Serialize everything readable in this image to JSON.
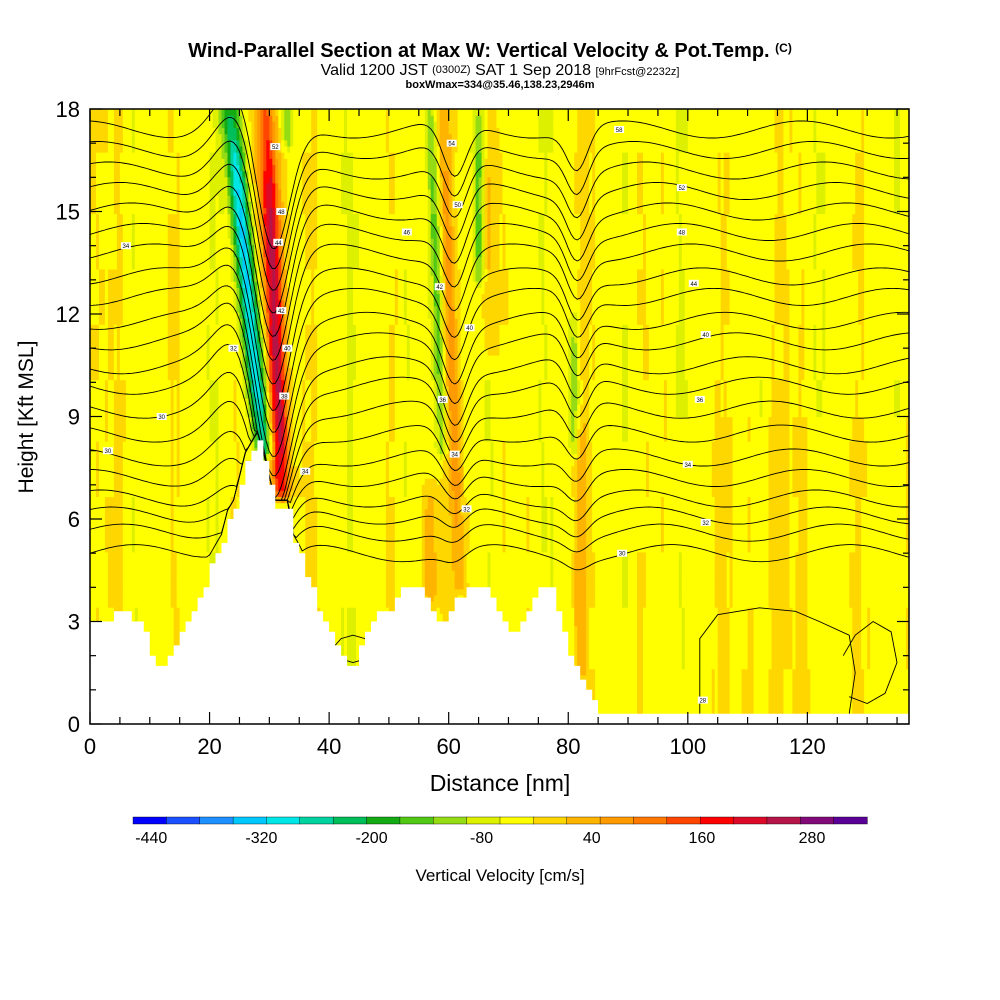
{
  "chart_data": {
    "type": "heatmap",
    "title": "Wind-Parallel Section at Max W: Vertical Velocity & Pot.Temp.",
    "title_suffix": "(C)",
    "subtitle_parts": [
      "Valid 1200 JST",
      "(0300Z)",
      "SAT 1 Sep 2018",
      "[9hrFcst@2232z]"
    ],
    "subtitle2": "boxWmax=334@35.46,138.23,2946m",
    "xlabel": "Distance [nm]",
    "ylabel": "Height [Kft MSL]",
    "xlim": [
      0,
      137
    ],
    "ylim": [
      0,
      18
    ],
    "xticks": [
      "0",
      "20",
      "40",
      "60",
      "80",
      "100",
      "120"
    ],
    "yticks": [
      "0",
      "3",
      "6",
      "9",
      "12",
      "15",
      "18"
    ],
    "colorbar": {
      "label": "Vertical Velocity [cm/s]",
      "min": -460,
      "max": 340,
      "step": 40,
      "tick_labels": [
        "-440",
        "-320",
        "-200",
        "-80",
        "40",
        "160",
        "280"
      ],
      "colors": [
        "#0000ff",
        "#1a50ff",
        "#1e90ff",
        "#00c8ff",
        "#00e6e6",
        "#00d2a0",
        "#00be5a",
        "#14aa14",
        "#50c814",
        "#96dc14",
        "#dcf000",
        "#ffff00",
        "#ffd700",
        "#ffb400",
        "#ff9b00",
        "#ff7800",
        "#ff4600",
        "#ff0000",
        "#dc0a28",
        "#b41446",
        "#820a78",
        "#5a0096"
      ]
    },
    "terrain_kft": [
      [
        0,
        3.0
      ],
      [
        3,
        3.0
      ],
      [
        4,
        3.3
      ],
      [
        6,
        3.3
      ],
      [
        7,
        3.0
      ],
      [
        8,
        3.0
      ],
      [
        9,
        2.7
      ],
      [
        10,
        2.0
      ],
      [
        11,
        1.7
      ],
      [
        12,
        1.7
      ],
      [
        13,
        2.0
      ],
      [
        14,
        2.3
      ],
      [
        15,
        2.7
      ],
      [
        16,
        3.0
      ],
      [
        17,
        3.3
      ],
      [
        18,
        3.7
      ],
      [
        19,
        4.0
      ],
      [
        20,
        4.7
      ],
      [
        21,
        5.0
      ],
      [
        22,
        5.3
      ],
      [
        23,
        6.0
      ],
      [
        24,
        6.3
      ],
      [
        25,
        7.0
      ],
      [
        26,
        7.7
      ],
      [
        27,
        8.0
      ],
      [
        28,
        8.3
      ],
      [
        29,
        7.7
      ],
      [
        30,
        7.0
      ],
      [
        31,
        6.3
      ],
      [
        33,
        6.3
      ],
      [
        34,
        5.3
      ],
      [
        35,
        5.0
      ],
      [
        36,
        4.3
      ],
      [
        37,
        4.0
      ],
      [
        38,
        3.3
      ],
      [
        39,
        3.0
      ],
      [
        40,
        2.7
      ],
      [
        41,
        2.3
      ],
      [
        42,
        2.0
      ],
      [
        43,
        1.7
      ],
      [
        44,
        1.7
      ],
      [
        45,
        2.3
      ],
      [
        46,
        2.7
      ],
      [
        47,
        3.0
      ],
      [
        48,
        3.3
      ],
      [
        50,
        3.3
      ],
      [
        51,
        3.7
      ],
      [
        52,
        4.0
      ],
      [
        55,
        4.0
      ],
      [
        56,
        3.7
      ],
      [
        57,
        3.3
      ],
      [
        58,
        3.0
      ],
      [
        59,
        3.0
      ],
      [
        60,
        3.3
      ],
      [
        61,
        3.7
      ],
      [
        62,
        3.7
      ],
      [
        63,
        4.0
      ],
      [
        66,
        4.0
      ],
      [
        67,
        3.7
      ],
      [
        68,
        3.3
      ],
      [
        69,
        3.0
      ],
      [
        70,
        2.7
      ],
      [
        71,
        2.7
      ],
      [
        72,
        3.0
      ],
      [
        73,
        3.3
      ],
      [
        74,
        3.7
      ],
      [
        75,
        4.0
      ],
      [
        77,
        4.0
      ],
      [
        78,
        3.3
      ],
      [
        79,
        2.7
      ],
      [
        80,
        2.0
      ],
      [
        81,
        1.7
      ],
      [
        82,
        1.3
      ],
      [
        83,
        1.0
      ],
      [
        84,
        0.7
      ],
      [
        85,
        0.3
      ],
      [
        137,
        0.3
      ]
    ],
    "updrafts": [
      {
        "x": 32,
        "y_bottom": 6.8,
        "y_top": 18,
        "lean": 2.5,
        "w_peak": 320,
        "width_nm": 1.6
      },
      {
        "x": 62,
        "y_bottom": 4.0,
        "y_top": 18,
        "lean": 3.0,
        "w_peak": 100,
        "width_nm": 1.2
      },
      {
        "x": 67,
        "y_bottom": 11.0,
        "y_top": 18,
        "lean": 0.0,
        "w_peak": 80,
        "width_nm": 1.2
      },
      {
        "x": 57,
        "y_bottom": 3.5,
        "y_top": 7.0,
        "lean": 0.0,
        "w_peak": 80,
        "width_nm": 1.2
      },
      {
        "x": 82,
        "y_bottom": 1.5,
        "y_top": 9.0,
        "lean": 0.0,
        "w_peak": 70,
        "width_nm": 1.0
      }
    ],
    "downdrafts": [
      {
        "x": 29,
        "y_bottom": 8.0,
        "y_top": 18,
        "lean": 5.5,
        "w_min": -320,
        "width_nm": 1.6
      },
      {
        "x": 59,
        "y_bottom": 8.0,
        "y_top": 18,
        "lean": 2.0,
        "w_min": -120,
        "width_nm": 1.0
      },
      {
        "x": 65,
        "y_bottom": 13.0,
        "y_top": 18,
        "lean": 0.0,
        "w_min": -110,
        "width_nm": 0.9
      },
      {
        "x": 81,
        "y_bottom": 8.0,
        "y_top": 12.0,
        "lean": 0.0,
        "w_min": -90,
        "width_nm": 0.8
      },
      {
        "x": 33,
        "y_bottom": 17.0,
        "y_top": 18,
        "lean": 0.0,
        "w_min": -100,
        "width_nm": 0.8
      }
    ],
    "isentropes": {
      "base_height_kft": [
        5.0,
        5.6,
        6.1,
        6.6,
        7.2,
        7.8,
        8.5,
        9.2,
        9.9,
        10.5,
        11.2,
        11.8,
        12.5,
        13.1,
        13.8,
        14.4,
        15.0,
        15.6,
        16.2,
        16.8,
        17.4
      ],
      "perturbations": [
        {
          "x": 30.5,
          "amplitude_kft": -4.0,
          "halfwidth_nm": 4.0
        },
        {
          "x": 24.5,
          "amplitude_kft": 1.2,
          "halfwidth_nm": 5.0
        },
        {
          "x": 61,
          "amplitude_kft": -1.6,
          "halfwidth_nm": 2.8
        },
        {
          "x": 81.5,
          "amplitude_kft": -1.2,
          "halfwidth_nm": 2.5
        }
      ],
      "contour_labels": [
        {
          "x": 6,
          "y": 14.0,
          "text": "34"
        },
        {
          "x": 12,
          "y": 9.0,
          "text": "30"
        },
        {
          "x": 3,
          "y": 8.0,
          "text": "30"
        },
        {
          "x": 24,
          "y": 11.0,
          "text": "32"
        },
        {
          "x": 31,
          "y": 16.9,
          "text": "52"
        },
        {
          "x": 32,
          "y": 15.0,
          "text": "48"
        },
        {
          "x": 31.5,
          "y": 14.1,
          "text": "44"
        },
        {
          "x": 32,
          "y": 12.1,
          "text": "42"
        },
        {
          "x": 33,
          "y": 11.0,
          "text": "40"
        },
        {
          "x": 32.5,
          "y": 9.6,
          "text": "38"
        },
        {
          "x": 36,
          "y": 7.4,
          "text": "34"
        },
        {
          "x": 60.5,
          "y": 17.0,
          "text": "54"
        },
        {
          "x": 61.5,
          "y": 15.2,
          "text": "50"
        },
        {
          "x": 53,
          "y": 14.4,
          "text": "46"
        },
        {
          "x": 58.5,
          "y": 12.8,
          "text": "42"
        },
        {
          "x": 63.5,
          "y": 11.6,
          "text": "40"
        },
        {
          "x": 59,
          "y": 9.5,
          "text": "36"
        },
        {
          "x": 61,
          "y": 7.9,
          "text": "34"
        },
        {
          "x": 63,
          "y": 6.3,
          "text": "32"
        },
        {
          "x": 88.5,
          "y": 17.4,
          "text": "58"
        },
        {
          "x": 99,
          "y": 15.7,
          "text": "52"
        },
        {
          "x": 99,
          "y": 14.4,
          "text": "48"
        },
        {
          "x": 101,
          "y": 12.9,
          "text": "44"
        },
        {
          "x": 103,
          "y": 11.4,
          "text": "40"
        },
        {
          "x": 102,
          "y": 9.5,
          "text": "36"
        },
        {
          "x": 100,
          "y": 7.6,
          "text": "34"
        },
        {
          "x": 103,
          "y": 5.9,
          "text": "32"
        },
        {
          "x": 89,
          "y": 5.0,
          "text": "30"
        },
        {
          "x": 102.5,
          "y": 0.7,
          "text": "28"
        }
      ]
    },
    "low_level_closed_contours": [
      {
        "points": [
          [
            41,
            2.3
          ],
          [
            42,
            2.5
          ],
          [
            44,
            2.6
          ],
          [
            46,
            2.5
          ],
          [
            47,
            2.2
          ],
          [
            46,
            1.9
          ],
          [
            44,
            1.8
          ],
          [
            42,
            1.9
          ]
        ]
      },
      {
        "points": [
          [
            102,
            0.3
          ],
          [
            102,
            2.5
          ],
          [
            105,
            3.2
          ],
          [
            112,
            3.4
          ],
          [
            118,
            3.3
          ],
          [
            122,
            3.0
          ],
          [
            127,
            2.6
          ],
          [
            128,
            1.5
          ],
          [
            127,
            0.3
          ]
        ]
      },
      {
        "points": [
          [
            126,
            2.0
          ],
          [
            128,
            2.6
          ],
          [
            131,
            3.0
          ],
          [
            134,
            2.7
          ],
          [
            135,
            1.8
          ],
          [
            133,
            0.9
          ],
          [
            130,
            0.6
          ],
          [
            127,
            0.8
          ]
        ]
      }
    ]
  }
}
